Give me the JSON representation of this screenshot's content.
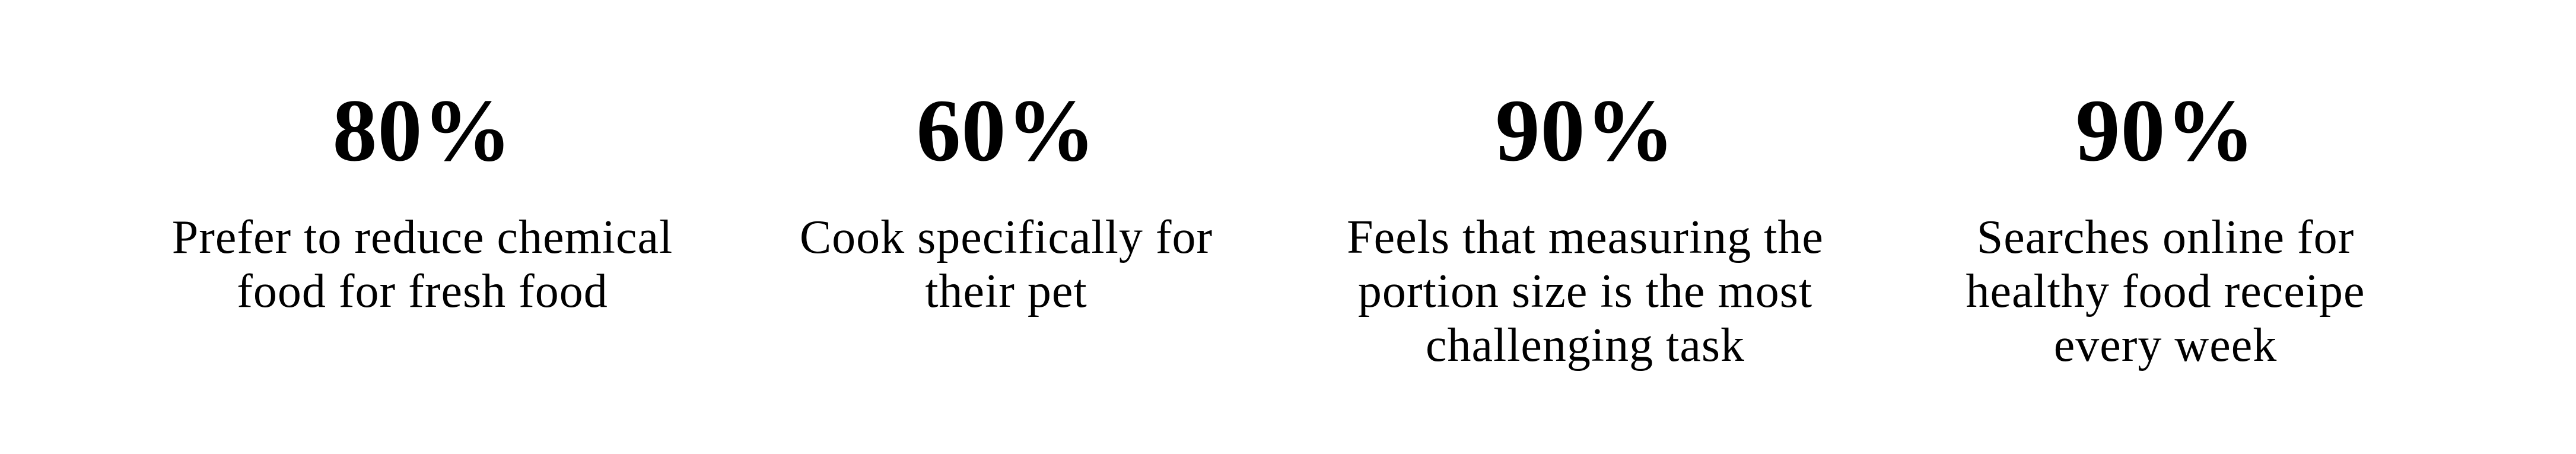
{
  "stats": [
    {
      "value": "80%",
      "lines": [
        "Prefer to reduce chemical",
        "food for fresh food"
      ]
    },
    {
      "value": "60%",
      "lines": [
        "Cook specifically for",
        "their pet"
      ]
    },
    {
      "value": "90%",
      "lines": [
        "Feels that measuring the",
        "portion size is the most",
        "challenging task"
      ]
    },
    {
      "value": "90%",
      "lines": [
        "Searches online for",
        "healthy food receipe",
        "every week"
      ]
    }
  ]
}
